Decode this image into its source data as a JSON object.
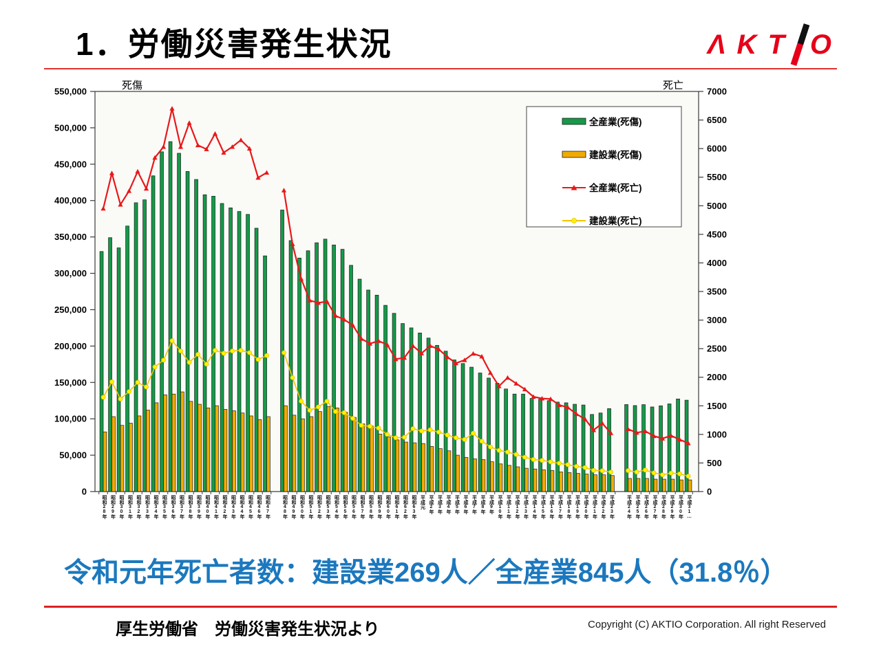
{
  "page": {
    "title": "1．労働災害発生状況",
    "logo": {
      "left": "ΛKT",
      "right": "O",
      "color": "#e60019"
    },
    "headline": "令和元年死亡者数：建設業269人／全産業845人（31.8％）",
    "headline_color": "#1b78be",
    "accent_red": "#dd2222",
    "footer": {
      "source": "厚生労働省　労働災害発生状況より",
      "copyright": "Copyright (C)  AKTIO Corporation. All right Reserved"
    }
  },
  "chart_data": {
    "type": "bar",
    "subtype": "dual-axis bar + line combo",
    "title": "",
    "xlabel": "",
    "ylabel_left": "死傷",
    "ylabel_right": "死亡",
    "left_axis": {
      "label": "死傷",
      "min": 0,
      "max": 550000,
      "step": 50000,
      "tick_format": "thousands-comma"
    },
    "right_axis": {
      "label": "死亡",
      "min": 0,
      "max": 7000,
      "step": 500
    },
    "grid": false,
    "legend_position": "upper-right-box",
    "plot_bg": "#fafaf7",
    "legend": [
      {
        "label": "全産業(死傷)",
        "type": "bar",
        "color": "#149a48"
      },
      {
        "label": "建設業(死傷)",
        "type": "bar",
        "color": "#f0ab00"
      },
      {
        "label": "全産業(死亡)",
        "type": "line",
        "color": "#e81819",
        "marker": "triangle"
      },
      {
        "label": "建設業(死亡)",
        "type": "line",
        "color": "#f2c500",
        "marker": "circle",
        "marker_color": "#fff200"
      }
    ],
    "categories": [
      "昭和28年",
      "昭和29年",
      "昭和30年",
      "昭和31年",
      "昭和32年",
      "昭和33年",
      "昭和34年",
      "昭和35年",
      "昭和36年",
      "昭和37年",
      "昭和38年",
      "昭和39年",
      "昭和40年",
      "昭和41年",
      "昭和42年",
      "昭和43年",
      "昭和44年",
      "昭和45年",
      "昭和46年",
      "昭和47年",
      "昭和48年",
      "昭和49年",
      "昭和50年",
      "昭和51年",
      "昭和52年",
      "昭和53年",
      "昭和54年",
      "昭和55年",
      "昭和56年",
      "昭和57年",
      "昭和58年",
      "昭和59年",
      "昭和60年",
      "昭和61年",
      "昭和62年",
      "昭和63年",
      "平成元",
      "平成2年",
      "平成3年",
      "平成4年",
      "平成5年",
      "平成6年",
      "平成7年",
      "平成8年",
      "平成9年",
      "平成10年",
      "平成11年",
      "平成12年",
      "平成13年",
      "平成14年",
      "平成15年",
      "平成16年",
      "平成17年",
      "平成18年",
      "平成19年",
      "平成20年",
      "平成21年",
      "平成22年",
      "平成23年",
      "平成24年",
      "平成25年",
      "平成26年",
      "平成27年",
      "平成28年",
      "平成29年",
      "平成30年",
      "平成31…"
    ],
    "gap_after_indices": [
      19,
      58
    ],
    "series": [
      {
        "name": "全産業(死傷)",
        "axis": "left",
        "type": "bar",
        "color": "#149a48",
        "values": [
          330000,
          349000,
          335000,
          365000,
          397000,
          401000,
          434000,
          467000,
          481000,
          465000,
          440000,
          429000,
          408000,
          406000,
          396000,
          390000,
          385000,
          381000,
          362000,
          324000,
          387000,
          345000,
          321000,
          331000,
          342000,
          347000,
          339000,
          333000,
          311000,
          292000,
          277000,
          270000,
          256000,
          245000,
          231000,
          225000,
          218000,
          211000,
          201000,
          193000,
          181000,
          176000,
          171000,
          163000,
          156000,
          149000,
          141000,
          134000,
          134000,
          128000,
          127000,
          125000,
          123000,
          122000,
          120000,
          119000,
          106000,
          108000,
          114000,
          119600,
          118200,
          119500,
          116300,
          117900,
          120500,
          127300,
          125600
        ]
      },
      {
        "name": "建設業(死傷)",
        "axis": "left",
        "type": "bar",
        "color": "#f0ab00",
        "values": [
          82000,
          103000,
          91000,
          94000,
          104000,
          112000,
          122000,
          133000,
          134000,
          137000,
          124000,
          120000,
          115000,
          118000,
          113000,
          111000,
          108000,
          104000,
          99000,
          103000,
          118000,
          105000,
          100000,
          103000,
          110000,
          117000,
          115000,
          109000,
          102000,
          93000,
          90000,
          79000,
          75000,
          71000,
          68000,
          67000,
          66000,
          62000,
          59000,
          56000,
          50000,
          47000,
          45000,
          44000,
          41000,
          38000,
          36000,
          34000,
          32000,
          31000,
          30000,
          29000,
          27000,
          26000,
          25000,
          24000,
          23000,
          23000,
          22000,
          18000,
          18000,
          18000,
          17000,
          17000,
          17000,
          16000,
          16000
        ]
      },
      {
        "name": "全産業(死亡)",
        "axis": "right",
        "type": "line",
        "color": "#e81819",
        "marker": "triangle",
        "values": [
          4950,
          5570,
          5020,
          5260,
          5600,
          5300,
          5840,
          6030,
          6700,
          6030,
          6450,
          6060,
          5990,
          6260,
          5930,
          6030,
          6150,
          6000,
          5490,
          5580,
          5269,
          4330,
          3725,
          3345,
          3302,
          3326,
          3077,
          3009,
          2912,
          2674,
          2588,
          2635,
          2572,
          2318,
          2342,
          2549,
          2419,
          2550,
          2489,
          2354,
          2245,
          2301,
          2414,
          2363,
          2078,
          1844,
          1992,
          1889,
          1790,
          1658,
          1628,
          1620,
          1514,
          1472,
          1357,
          1268,
          1075,
          1195,
          1024,
          1093,
          1030,
          1057,
          972,
          928,
          978,
          909,
          845
        ]
      },
      {
        "name": "建設業(死亡)",
        "axis": "right",
        "type": "line",
        "color": "#f2c500",
        "marker": "circle",
        "marker_color": "#fff200",
        "values": [
          1650,
          1920,
          1620,
          1750,
          1910,
          1830,
          2180,
          2300,
          2640,
          2460,
          2260,
          2400,
          2230,
          2470,
          2420,
          2460,
          2470,
          2430,
          2310,
          2380,
          2430,
          1992,
          1582,
          1420,
          1480,
          1580,
          1400,
          1380,
          1280,
          1160,
          1140,
          1110,
          1000,
          940,
          950,
          1100,
          1060,
          1080,
          1040,
          990,
          940,
          910,
          1021,
          880,
          780,
          720,
          690,
          650,
          600,
          560,
          545,
          520,
          495,
          470,
          440,
          420,
          370,
          365,
          340,
          367,
          342,
          377,
          327,
          294,
          323,
          309,
          269
        ]
      }
    ],
    "annotation": "令和元年死亡者数：建設業269人／全産業845人（31.8％）"
  }
}
